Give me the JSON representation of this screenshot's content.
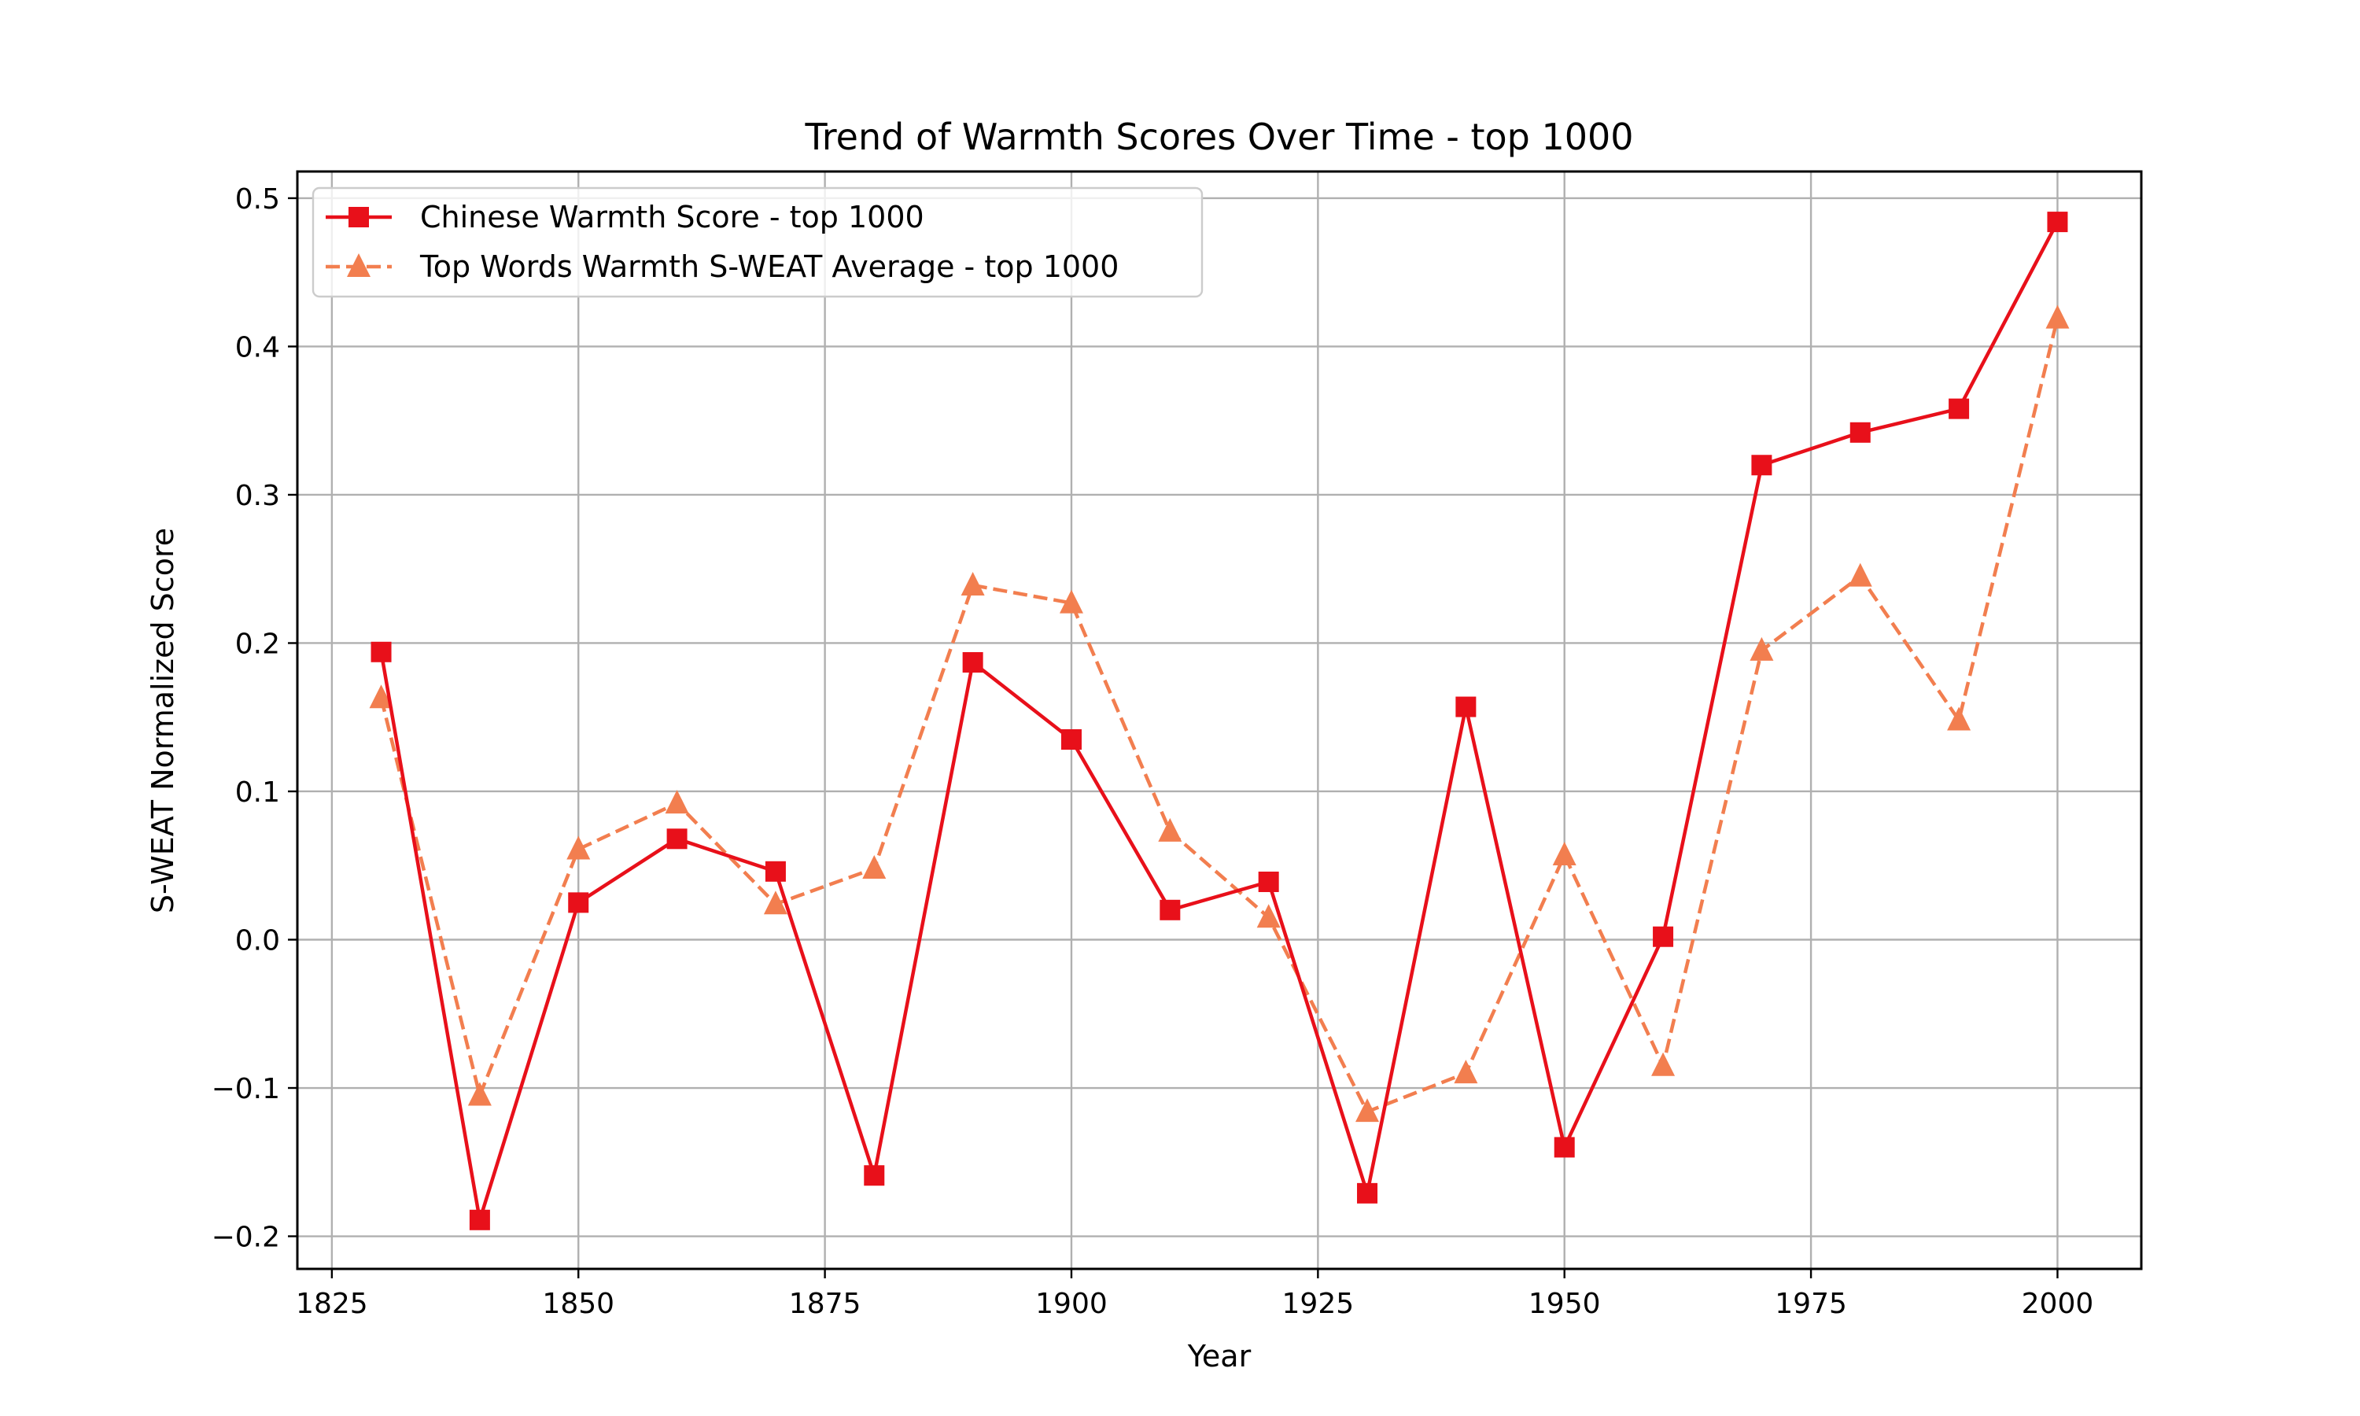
{
  "chart_data": {
    "type": "line",
    "title": "Trend of Warmth Scores Over Time - top 1000",
    "xlabel": "Year",
    "ylabel": "S-WEAT Normalized Score",
    "xlim": [
      1821.5,
      2008.5
    ],
    "ylim": [
      -0.222,
      0.518
    ],
    "xticks": [
      1825,
      1850,
      1875,
      1900,
      1925,
      1950,
      1975,
      2000
    ],
    "xtick_labels": [
      "1825",
      "1850",
      "1875",
      "1900",
      "1925",
      "1950",
      "1975",
      "2000"
    ],
    "yticks": [
      -0.2,
      -0.1,
      0.0,
      0.1,
      0.2,
      0.3,
      0.4,
      0.5
    ],
    "ytick_labels": [
      "−0.2",
      "−0.1",
      "0.0",
      "0.1",
      "0.2",
      "0.3",
      "0.4",
      "0.5"
    ],
    "grid": true,
    "legend_position": "top-left",
    "x": [
      1830,
      1840,
      1850,
      1860,
      1870,
      1880,
      1890,
      1900,
      1910,
      1920,
      1930,
      1940,
      1950,
      1960,
      1970,
      1980,
      1990,
      2000
    ],
    "series": [
      {
        "name": "Chinese Warmth Score - top 1000",
        "color": "#e8101a",
        "marker": "square",
        "linestyle": "solid",
        "values": [
          0.194,
          -0.189,
          0.025,
          0.068,
          0.046,
          -0.159,
          0.187,
          0.135,
          0.02,
          0.039,
          -0.171,
          0.157,
          -0.14,
          0.002,
          0.32,
          0.342,
          0.358,
          0.484
        ]
      },
      {
        "name": "Top Words Warmth S-WEAT Average - top 1000",
        "color": "#f27e4f",
        "marker": "triangle",
        "linestyle": "dashed",
        "values": [
          0.163,
          -0.105,
          0.061,
          0.092,
          0.024,
          0.048,
          0.239,
          0.227,
          0.073,
          0.015,
          -0.116,
          -0.09,
          0.057,
          -0.085,
          0.195,
          0.245,
          0.148,
          0.419
        ]
      }
    ]
  }
}
